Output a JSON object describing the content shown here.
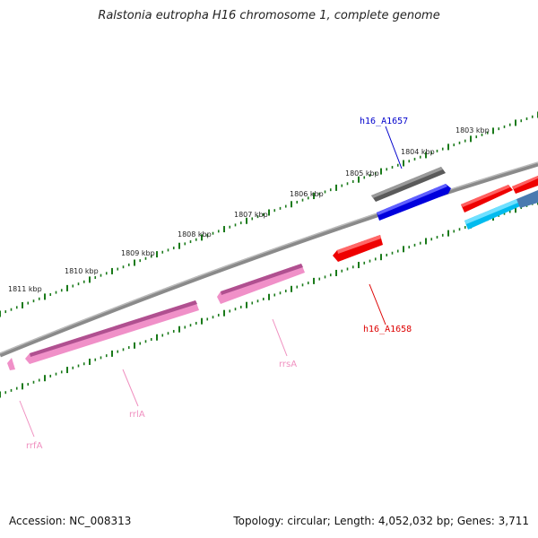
{
  "title": "Ralstonia eutropha H16 chromosome 1, complete genome",
  "footer": {
    "accession": "Accession: NC_008313",
    "summary": "Topology: circular; Length: 4,052,032 bp; Genes: 3,711"
  },
  "ruler": {
    "kbp_labels": [
      "1811 kbp",
      "1810 kbp",
      "1809 kbp",
      "1808 kbp",
      "1807 kbp",
      "1806 kbp",
      "1805 kbp",
      "1804 kbp",
      "1803 kbp"
    ]
  },
  "genes": {
    "h16_A1657": "h16_A1657",
    "h16_A1658": "h16_A1658",
    "rrsA": "rrsA",
    "rrlA": "rrlA",
    "rrfA": "rrfA"
  },
  "colors": {
    "backbone": "#777777",
    "tick": "#1a7a1a",
    "gray_gene": "#5a5a5a",
    "blue_gene": "#0000dd",
    "red_gene": "#ee0000",
    "cyan_gene": "#00bbee",
    "steel_gene": "#4a7ab0",
    "pink_gene": "#f090c8",
    "label_blue": "#0000cc",
    "label_red": "#dd0000",
    "label_pink": "#f090c0"
  }
}
